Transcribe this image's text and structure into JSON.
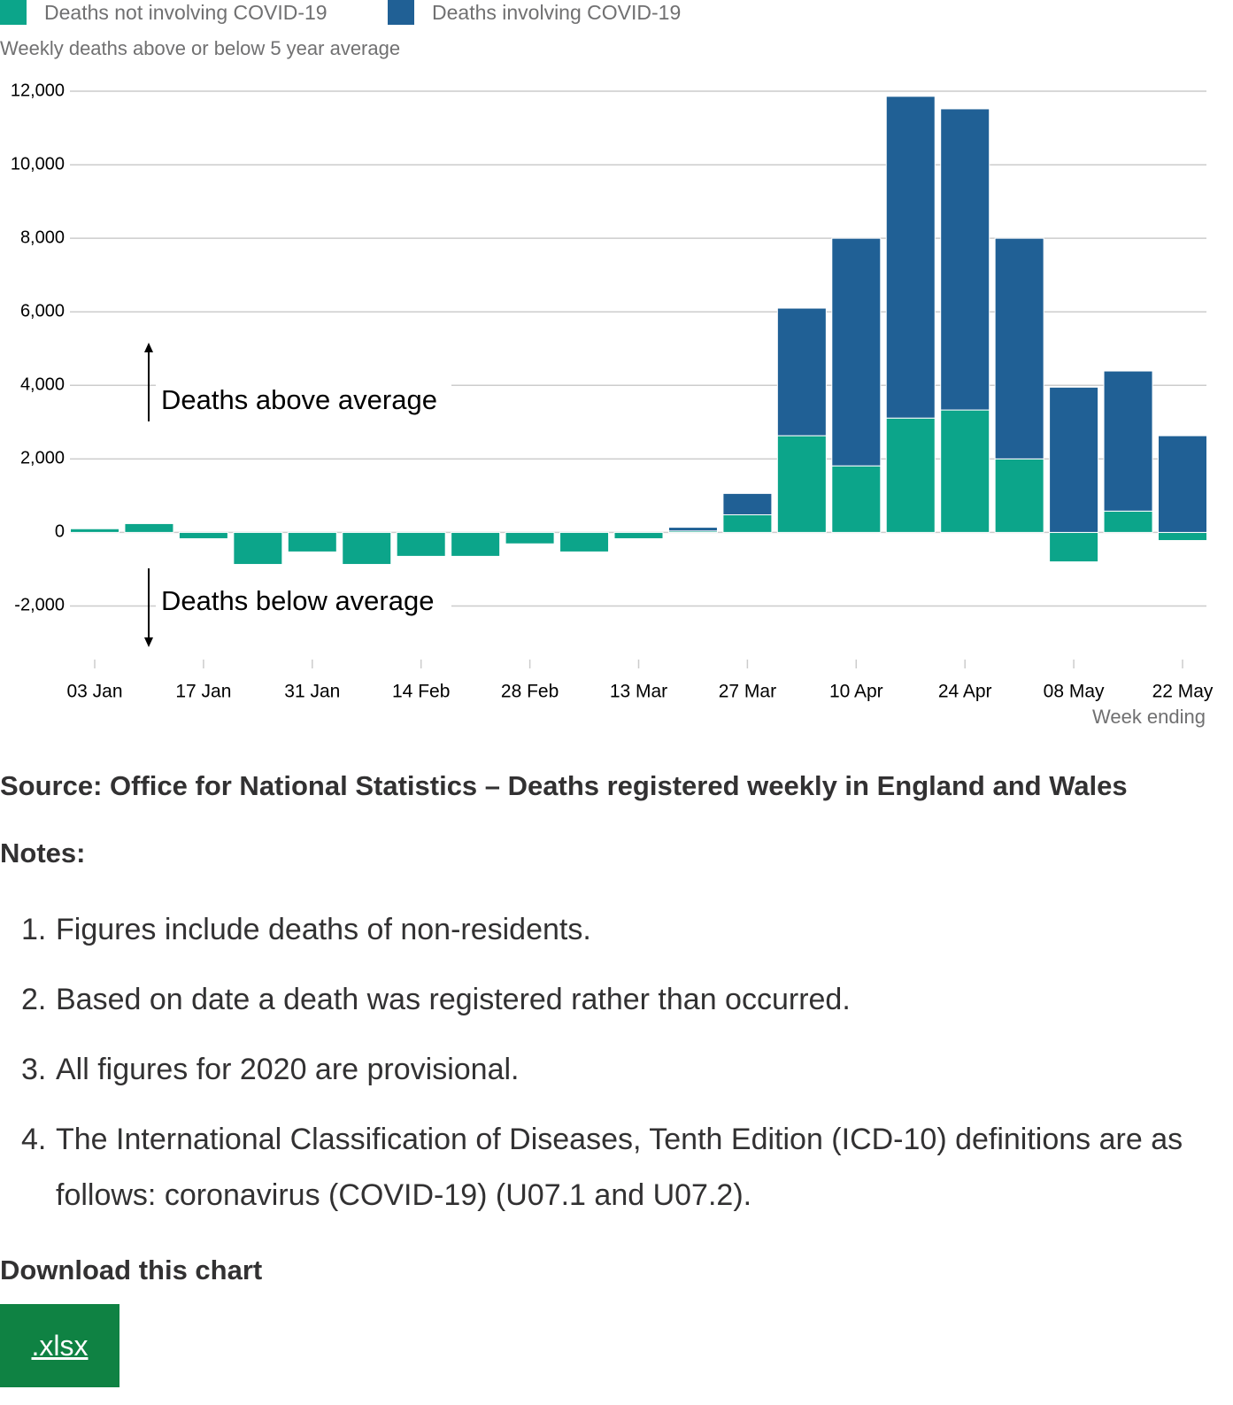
{
  "chart_data": {
    "type": "bar",
    "stacked": true,
    "subtitle": "Weekly deaths above or below 5 year average",
    "x_label": "Week ending",
    "annotations": [
      "Deaths above average",
      "Deaths below average"
    ],
    "categories": [
      "03 Jan",
      null,
      "17 Jan",
      null,
      "31 Jan",
      null,
      "14 Feb",
      null,
      "28 Feb",
      null,
      "13 Mar",
      null,
      "27 Mar",
      null,
      "10 Apr",
      null,
      "24 Apr",
      null,
      "08 May",
      null,
      "22 May"
    ],
    "series": [
      {
        "name": "Deaths not involving COVID-19",
        "color": "#0ca58a",
        "values": [
          100,
          240,
          -170,
          -870,
          -530,
          -870,
          -650,
          -650,
          -310,
          -530,
          -170,
          40,
          480,
          2630,
          1810,
          3110,
          3330,
          2000,
          -800,
          580,
          -220
        ]
      },
      {
        "name": "Deaths involving COVID-19",
        "color": "#206095",
        "values": [
          0,
          0,
          0,
          0,
          0,
          0,
          0,
          0,
          0,
          0,
          0,
          100,
          580,
          3470,
          6190,
          8750,
          8190,
          6000,
          3950,
          3810,
          2630
        ]
      }
    ],
    "ylim": [
      -3000,
      12000
    ],
    "yticks": [
      {
        "value": -2000,
        "label": "-2,000"
      },
      0,
      {
        "value": 2000,
        "label": "2,000"
      },
      {
        "value": 4000,
        "label": "4,000"
      },
      {
        "value": 6000,
        "label": "6,000"
      },
      {
        "value": 8000,
        "label": "8,000"
      },
      {
        "value": 10000,
        "label": "10,000"
      },
      {
        "value": 12000,
        "label": "12,000"
      }
    ],
    "grid": true
  },
  "page": {
    "source": "Source: Office for National Statistics – Deaths registered weekly in England and Wales",
    "notes_title": "Notes:",
    "notes": [
      {
        "number": "1.",
        "text": "Figures include deaths of non-residents."
      },
      {
        "number": "2.",
        "text": "Based on date a death was registered rather than occurred."
      },
      {
        "number": "3.",
        "text": "All figures for 2020 are provisional."
      },
      {
        "number": "4.",
        "text": "The International Classification of Diseases, Tenth Edition (ICD-10) definitions are as follows: coronavirus (COVID-19) (U07.1 and U07.2)."
      }
    ],
    "download_title": "Download this chart",
    "download_button": ".xlsx"
  }
}
